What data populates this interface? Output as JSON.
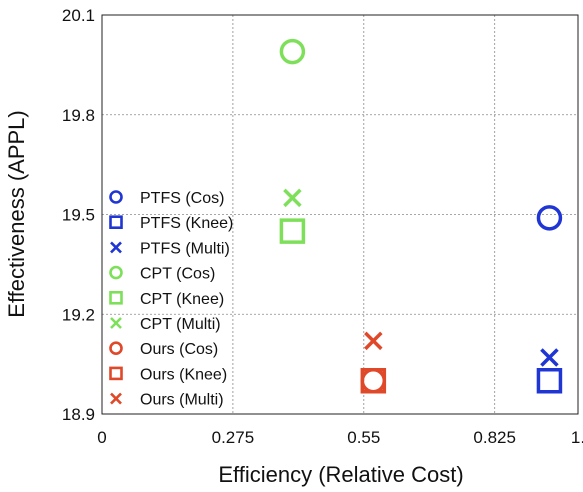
{
  "chart_data": {
    "type": "scatter",
    "title": "",
    "xlabel": "Efficiency (Relative Cost)",
    "ylabel": "Effectiveness (APPL)",
    "xlim": [
      0,
      1.0
    ],
    "ylim": [
      18.9,
      20.1
    ],
    "x_ticks": [
      0,
      0.275,
      0.55,
      0.825,
      1.0
    ],
    "x_tick_labels": [
      "0",
      "0.275",
      "0.55",
      "0.825",
      "1."
    ],
    "y_ticks": [
      18.9,
      19.2,
      19.5,
      19.8,
      20.1
    ],
    "y_tick_labels": [
      "18.9",
      "19.2",
      "19.5",
      "19.8",
      "20.1"
    ],
    "grid": true,
    "legend_position": "left",
    "series": [
      {
        "name": "PTFS (Cos)",
        "marker": "circle",
        "color": "#1f35d4",
        "x": 0.94,
        "y": 19.49
      },
      {
        "name": "PTFS (Knee)",
        "marker": "square",
        "color": "#1f35d4",
        "x": 0.94,
        "y": 19.0
      },
      {
        "name": "PTFS (Multi)",
        "marker": "x",
        "color": "#1f35d4",
        "x": 0.94,
        "y": 19.07
      },
      {
        "name": "CPT (Cos)",
        "marker": "circle",
        "color": "#7ee05a",
        "x": 0.4,
        "y": 19.99
      },
      {
        "name": "CPT (Knee)",
        "marker": "square",
        "color": "#7ee05a",
        "x": 0.4,
        "y": 19.45
      },
      {
        "name": "CPT (Multi)",
        "marker": "x",
        "color": "#7ee05a",
        "x": 0.4,
        "y": 19.55
      },
      {
        "name": "Ours (Cos)",
        "marker": "circle",
        "color": "#e0482a",
        "x": 0.57,
        "y": 19.0
      },
      {
        "name": "Ours (Knee)",
        "marker": "square",
        "color": "#e0482a",
        "x": 0.57,
        "y": 19.0
      },
      {
        "name": "Ours (Multi)",
        "marker": "x",
        "color": "#e0482a",
        "x": 0.57,
        "y": 19.12
      }
    ]
  }
}
